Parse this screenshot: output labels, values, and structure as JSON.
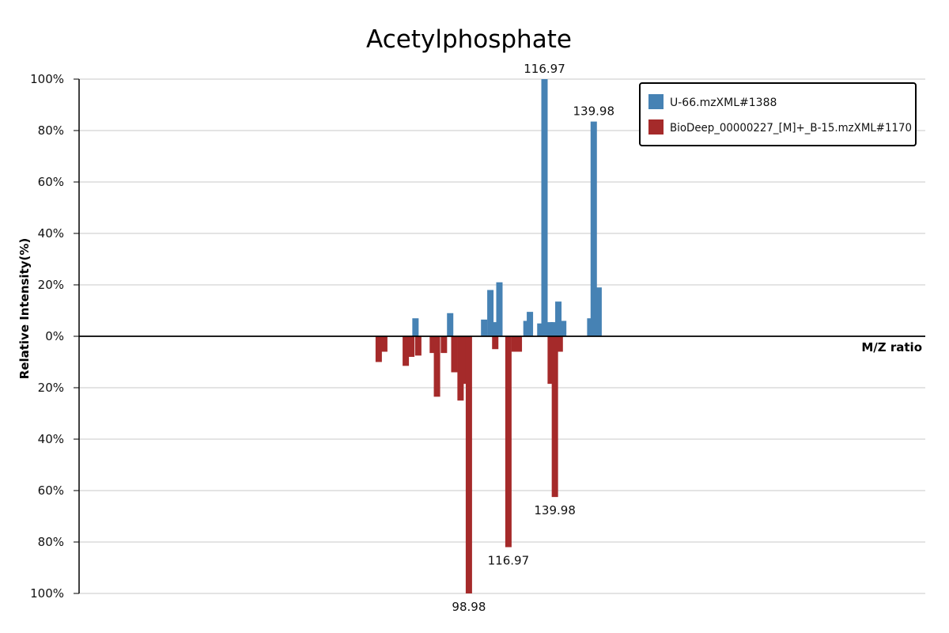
{
  "chart_data": {
    "type": "bar",
    "title": "Acetylphosphate",
    "ylabel": "Relative Intensity(%)",
    "xlabel": "M/Z ratio",
    "y_ticks_top": [
      "100%",
      "80%",
      "60%",
      "40%",
      "20%",
      "0%"
    ],
    "y_ticks_bottom": [
      "20%",
      "40%",
      "60%",
      "80%",
      "100%"
    ],
    "ylim": [
      -100,
      100
    ],
    "xlim": [
      55,
      177
    ],
    "grid": true,
    "legend_position": "top-right",
    "colors": {
      "top": "#4682b4",
      "bottom": "#a52a2a"
    },
    "series": [
      {
        "name": "U-66.mzXML#1388",
        "direction": "up",
        "points": [
          {
            "mz": 103.5,
            "intensity": 7.0
          },
          {
            "mz": 108.5,
            "intensity": 9.0
          },
          {
            "mz": 113.4,
            "intensity": 6.5
          },
          {
            "mz": 114.3,
            "intensity": 18.0
          },
          {
            "mz": 115.0,
            "intensity": 5.5
          },
          {
            "mz": 115.6,
            "intensity": 21.0
          },
          {
            "mz": 119.5,
            "intensity": 6.0
          },
          {
            "mz": 120.0,
            "intensity": 9.5
          },
          {
            "mz": 121.5,
            "intensity": 5.0
          },
          {
            "mz": 122.1,
            "intensity": 100.0
          },
          {
            "mz": 122.9,
            "intensity": 5.5
          },
          {
            "mz": 123.4,
            "intensity": 5.5
          },
          {
            "mz": 124.1,
            "intensity": 13.5
          },
          {
            "mz": 124.8,
            "intensity": 6.0
          },
          {
            "mz": 128.7,
            "intensity": 7.0
          },
          {
            "mz": 129.2,
            "intensity": 83.5
          },
          {
            "mz": 129.9,
            "intensity": 19.0
          }
        ]
      },
      {
        "name": "BioDeep_00000227_[M]+_B-15.mzXML#1170",
        "direction": "down",
        "points": [
          {
            "mz": 98.2,
            "intensity": 10.0
          },
          {
            "mz": 99.0,
            "intensity": 6.0
          },
          {
            "mz": 102.1,
            "intensity": 11.5
          },
          {
            "mz": 102.9,
            "intensity": 8.0
          },
          {
            "mz": 103.9,
            "intensity": 7.5
          },
          {
            "mz": 106.0,
            "intensity": 6.5
          },
          {
            "mz": 106.6,
            "intensity": 23.5
          },
          {
            "mz": 107.6,
            "intensity": 6.5
          },
          {
            "mz": 109.1,
            "intensity": 14.0
          },
          {
            "mz": 110.0,
            "intensity": 25.0
          },
          {
            "mz": 110.5,
            "intensity": 18.5
          },
          {
            "mz": 111.2,
            "intensity": 100.0
          },
          {
            "mz": 115.0,
            "intensity": 5.0
          },
          {
            "mz": 116.9,
            "intensity": 82.0
          },
          {
            "mz": 117.8,
            "intensity": 6.0
          },
          {
            "mz": 118.4,
            "intensity": 6.0
          },
          {
            "mz": 123.0,
            "intensity": 18.5
          },
          {
            "mz": 123.6,
            "intensity": 62.5
          },
          {
            "mz": 124.3,
            "intensity": 6.0
          }
        ]
      }
    ],
    "peak_labels": [
      {
        "text": "116.97",
        "series": 0,
        "mz": 122.1,
        "intensity": 100.0
      },
      {
        "text": "139.98",
        "series": 0,
        "mz": 129.2,
        "intensity": 83.5
      },
      {
        "text": "139.98",
        "series": 1,
        "mz": 123.6,
        "intensity": 62.5
      },
      {
        "text": "116.97",
        "series": 1,
        "mz": 116.9,
        "intensity": 82.0
      },
      {
        "text": "98.98",
        "series": 1,
        "mz": 111.2,
        "intensity": 100.0
      }
    ]
  }
}
